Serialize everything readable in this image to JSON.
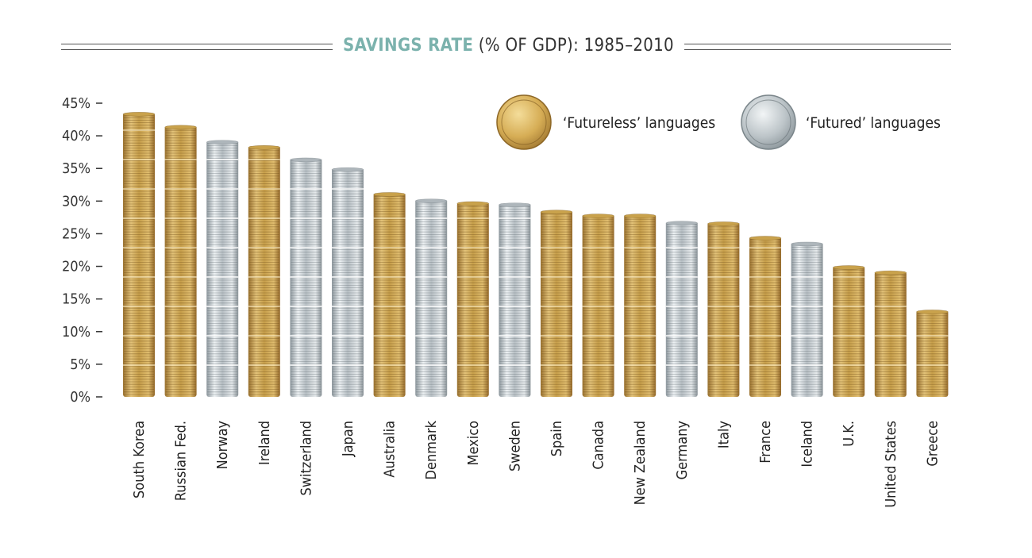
{
  "title": {
    "highlight": "SAVINGS RATE",
    "rest": " (% OF GDP): 1985–2010"
  },
  "chart_data": {
    "type": "bar",
    "ylim": [
      0,
      45
    ],
    "yticks": [
      "0%",
      "5%",
      "10%",
      "15%",
      "20%",
      "25%",
      "30%",
      "35%",
      "40%",
      "45%"
    ],
    "categories": [
      "South Korea",
      "Russian Fed.",
      "Norway",
      "Ireland",
      "Switzerland",
      "Japan",
      "Australia",
      "Denmark",
      "Mexico",
      "Sweden",
      "Spain",
      "Canada",
      "New Zealand",
      "Germany",
      "Italy",
      "France",
      "Iceland",
      "U.K.",
      "United States",
      "Greece"
    ],
    "values": [
      43.5,
      41.5,
      39.2,
      38.4,
      36.5,
      35.0,
      31.2,
      30.2,
      29.8,
      29.6,
      28.5,
      27.9,
      27.9,
      26.8,
      26.7,
      24.5,
      23.6,
      20.0,
      19.2,
      13.2
    ],
    "groups": [
      "futureless",
      "futureless",
      "futured",
      "futureless",
      "futured",
      "futured",
      "futureless",
      "futured",
      "futureless",
      "futured",
      "futureless",
      "futureless",
      "futureless",
      "futured",
      "futureless",
      "futureless",
      "futured",
      "futureless",
      "futureless",
      "futureless"
    ],
    "legend": [
      {
        "key": "futureless",
        "label": "‘Futureless’ languages",
        "color": "#c9a24c"
      },
      {
        "key": "futured",
        "label": "‘Futured’ languages",
        "color": "#aeb6bb"
      }
    ],
    "legend_position": "top-right",
    "grid": false
  }
}
